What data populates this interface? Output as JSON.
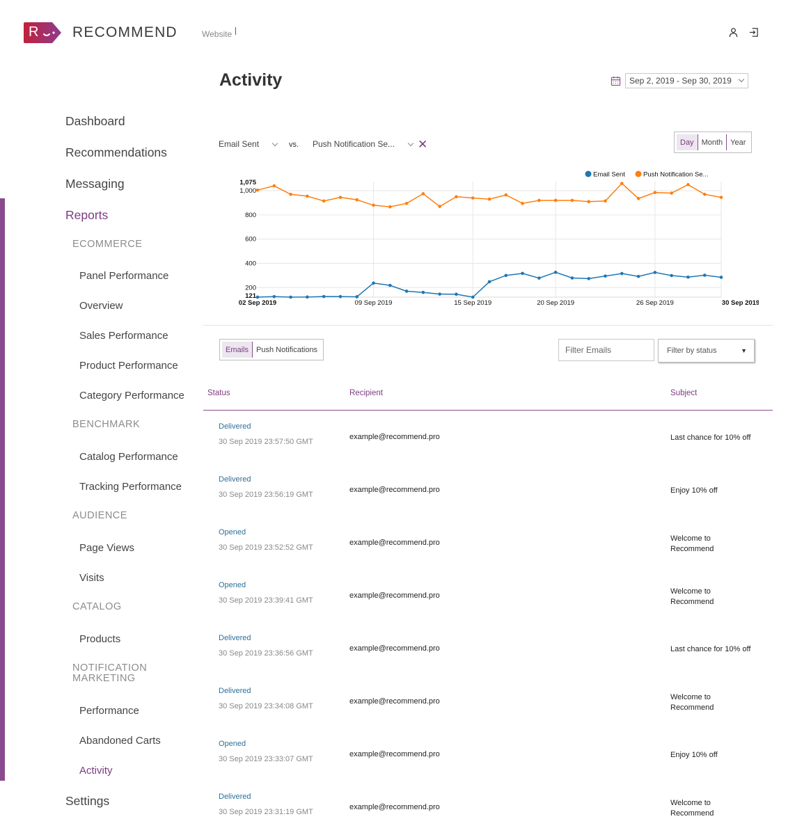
{
  "brand": {
    "name": "RECOMMEND",
    "mark_letter": "R",
    "colors": {
      "logo_gradient_start": "#c0213a",
      "logo_gradient_end": "#8e3b8f",
      "accent": "#7d3b83"
    }
  },
  "header": {
    "site": "Website",
    "icons": [
      "user-icon",
      "logout-icon"
    ]
  },
  "nav": {
    "dashboard": "Dashboard",
    "recommendations": "Recommendations",
    "messaging": "Messaging",
    "reports": "Reports",
    "settings": "Settings",
    "sections": {
      "ecommerce": "ECOMMERCE",
      "benchmark": "BENCHMARK",
      "audience": "AUDIENCE",
      "catalog": "CATALOG",
      "notification_marketing": "NOTIFICATION MARKETING"
    },
    "items": {
      "panel_performance": "Panel Performance",
      "overview": "Overview",
      "sales_performance": "Sales Performance",
      "product_performance": "Product Performance",
      "category_performance": "Category Performance",
      "catalog_performance": "Catalog Performance",
      "tracking_performance": "Tracking Performance",
      "page_views": "Page Views",
      "visits": "Visits",
      "products": "Products",
      "performance": "Performance",
      "abandoned_carts": "Abandoned Carts",
      "activity": "Activity"
    },
    "active_item": "Activity"
  },
  "page": {
    "title": "Activity",
    "date_range": "Sep 2, 2019 - Sep 30, 2019"
  },
  "metrics": {
    "primary": "Email Sent",
    "vs": "vs.",
    "secondary": "Push Notification Se..."
  },
  "period": {
    "day": "Day",
    "month": "Month",
    "year": "Year",
    "selected": "Day"
  },
  "chart_data": {
    "type": "line",
    "x": [
      "02 Sep 2019",
      "03 Sep 2019",
      "04 Sep 2019",
      "05 Sep 2019",
      "06 Sep 2019",
      "07 Sep 2019",
      "08 Sep 2019",
      "09 Sep 2019",
      "10 Sep 2019",
      "11 Sep 2019",
      "12 Sep 2019",
      "13 Sep 2019",
      "14 Sep 2019",
      "15 Sep 2019",
      "16 Sep 2019",
      "17 Sep 2019",
      "18 Sep 2019",
      "19 Sep 2019",
      "20 Sep 2019",
      "21 Sep 2019",
      "22 Sep 2019",
      "23 Sep 2019",
      "24 Sep 2019",
      "25 Sep 2019",
      "26 Sep 2019",
      "27 Sep 2019",
      "28 Sep 2019",
      "29 Sep 2019",
      "30 Sep 2019"
    ],
    "series": [
      {
        "name": "Email Sent",
        "color": "#1f77b4",
        "values": [
          121,
          125,
          121,
          122,
          126,
          125,
          124,
          237,
          218,
          170,
          160,
          146,
          145,
          121,
          248,
          300,
          317,
          278,
          326,
          279,
          274,
          295,
          316,
          292,
          325,
          299,
          286,
          302,
          285
        ]
      },
      {
        "name": "Push Notification Se...",
        "color": "#ff7f0e",
        "values": [
          1005,
          1040,
          970,
          955,
          915,
          945,
          925,
          880,
          867,
          895,
          975,
          870,
          950,
          940,
          930,
          965,
          895,
          920,
          920,
          920,
          910,
          915,
          1060,
          935,
          985,
          980,
          1050,
          970,
          945
        ]
      }
    ],
    "yticks": [
      "121",
      "200",
      "400",
      "600",
      "800",
      "1,000",
      "1,075"
    ],
    "xtick_labels": [
      "02 Sep 2019",
      "09 Sep 2019",
      "15 Sep 2019",
      "20 Sep 2019",
      "26 Sep 2019",
      "30 Sep 2019"
    ],
    "ylim": [
      121,
      1075
    ],
    "grid": true,
    "legend": "top-right"
  },
  "filters": {
    "types": [
      "Emails",
      "Push Notifications"
    ],
    "selected_type": "Emails",
    "filter_placeholder": "Filter Emails",
    "status_placeholder": "Filter by status"
  },
  "table": {
    "headers": {
      "status": "Status",
      "recipient": "Recipient",
      "subject": "Subject"
    },
    "rows": [
      {
        "status": "Delivered",
        "time": "30 Sep 2019 23:57:50 GMT",
        "recipient": "example@recommend.pro",
        "subject": "Last chance for 10% off"
      },
      {
        "status": "Delivered",
        "time": "30 Sep 2019 23:56:19 GMT",
        "recipient": "example@recommend.pro",
        "subject": "Enjoy 10% off"
      },
      {
        "status": "Opened",
        "time": "30 Sep 2019 23:52:52 GMT",
        "recipient": "example@recommend.pro",
        "subject": "Welcome to Recommend"
      },
      {
        "status": "Opened",
        "time": "30 Sep 2019 23:39:41 GMT",
        "recipient": "example@recommend.pro",
        "subject": "Welcome to Recommend"
      },
      {
        "status": "Delivered",
        "time": "30 Sep 2019 23:36:56 GMT",
        "recipient": "example@recommend.pro",
        "subject": "Last chance for 10% off"
      },
      {
        "status": "Delivered",
        "time": "30 Sep 2019 23:34:08 GMT",
        "recipient": "example@recommend.pro",
        "subject": "Welcome to Recommend"
      },
      {
        "status": "Opened",
        "time": "30 Sep 2019 23:33:07 GMT",
        "recipient": "example@recommend.pro",
        "subject": "Enjoy 10% off"
      },
      {
        "status": "Delivered",
        "time": "30 Sep 2019 23:31:19 GMT",
        "recipient": "example@recommend.pro",
        "subject": "Welcome to Recommend"
      }
    ]
  }
}
